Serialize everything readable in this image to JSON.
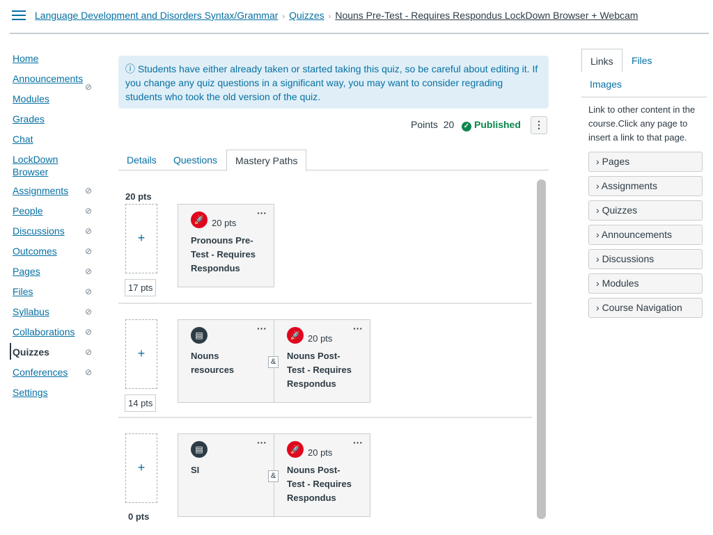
{
  "breadcrumb": {
    "course": "Language Development and Disorders Syntax/Grammar",
    "section": "Quizzes",
    "current": "Nouns Pre-Test - Requires Respondus LockDown Browser + Webcam"
  },
  "nav": [
    {
      "label": "Home",
      "hidden": false
    },
    {
      "label": "Announcements",
      "hidden": true
    },
    {
      "label": "Modules",
      "hidden": false
    },
    {
      "label": "Grades",
      "hidden": false
    },
    {
      "label": "Chat",
      "hidden": false
    },
    {
      "label": "LockDown Browser",
      "hidden": false
    },
    {
      "label": "Assignments",
      "hidden": true
    },
    {
      "label": "People",
      "hidden": true
    },
    {
      "label": "Discussions",
      "hidden": true
    },
    {
      "label": "Outcomes",
      "hidden": true
    },
    {
      "label": "Pages",
      "hidden": true
    },
    {
      "label": "Files",
      "hidden": true
    },
    {
      "label": "Syllabus",
      "hidden": true
    },
    {
      "label": "Collaborations",
      "hidden": true
    },
    {
      "label": "Quizzes",
      "hidden": true,
      "active": true
    },
    {
      "label": "Conferences",
      "hidden": true
    },
    {
      "label": "Settings",
      "hidden": false
    }
  ],
  "alert": "ⓘ Students have either already taken or started taking this quiz, so be careful about editing it. If you change any quiz questions in a significant way, you may want to consider regrading students who took the old version of the quiz.",
  "points_label": "Points",
  "points": "20",
  "status": "Published",
  "status_color": "#0b874b",
  "tabs": [
    "Details",
    "Questions",
    "Mastery Paths"
  ],
  "rows": [
    {
      "upper": "20 pts",
      "lower": "17 pts",
      "cards": [
        {
          "icon": "quiz-rocket-icon",
          "pts": "20 pts",
          "title": "Pronouns Pre-Test - Requires Respondus"
        }
      ]
    },
    {
      "upper": "",
      "lower": "14 pts",
      "cards": [
        {
          "icon": "page-icon",
          "pts": "",
          "title": "Nouns resources"
        },
        {
          "icon": "quiz-rocket-icon",
          "pts": "20 pts",
          "title": "Nouns Post-Test - Requires Respondus"
        }
      ]
    },
    {
      "upper": "",
      "lower": "0 pts",
      "cards": [
        {
          "icon": "page-icon",
          "pts": "",
          "title": "SI"
        },
        {
          "icon": "quiz-rocket-icon",
          "pts": "20 pts",
          "title": "Nouns Post-Test - Requires Respondus"
        }
      ]
    }
  ],
  "amp": "&",
  "right": {
    "tabs": [
      "Links",
      "Files",
      "Images"
    ],
    "desc": "Link to other content in the course.Click any page to insert a link to that page.",
    "items": [
      "Pages",
      "Assignments",
      "Quizzes",
      "Announcements",
      "Discussions",
      "Modules",
      "Course Navigation"
    ]
  }
}
